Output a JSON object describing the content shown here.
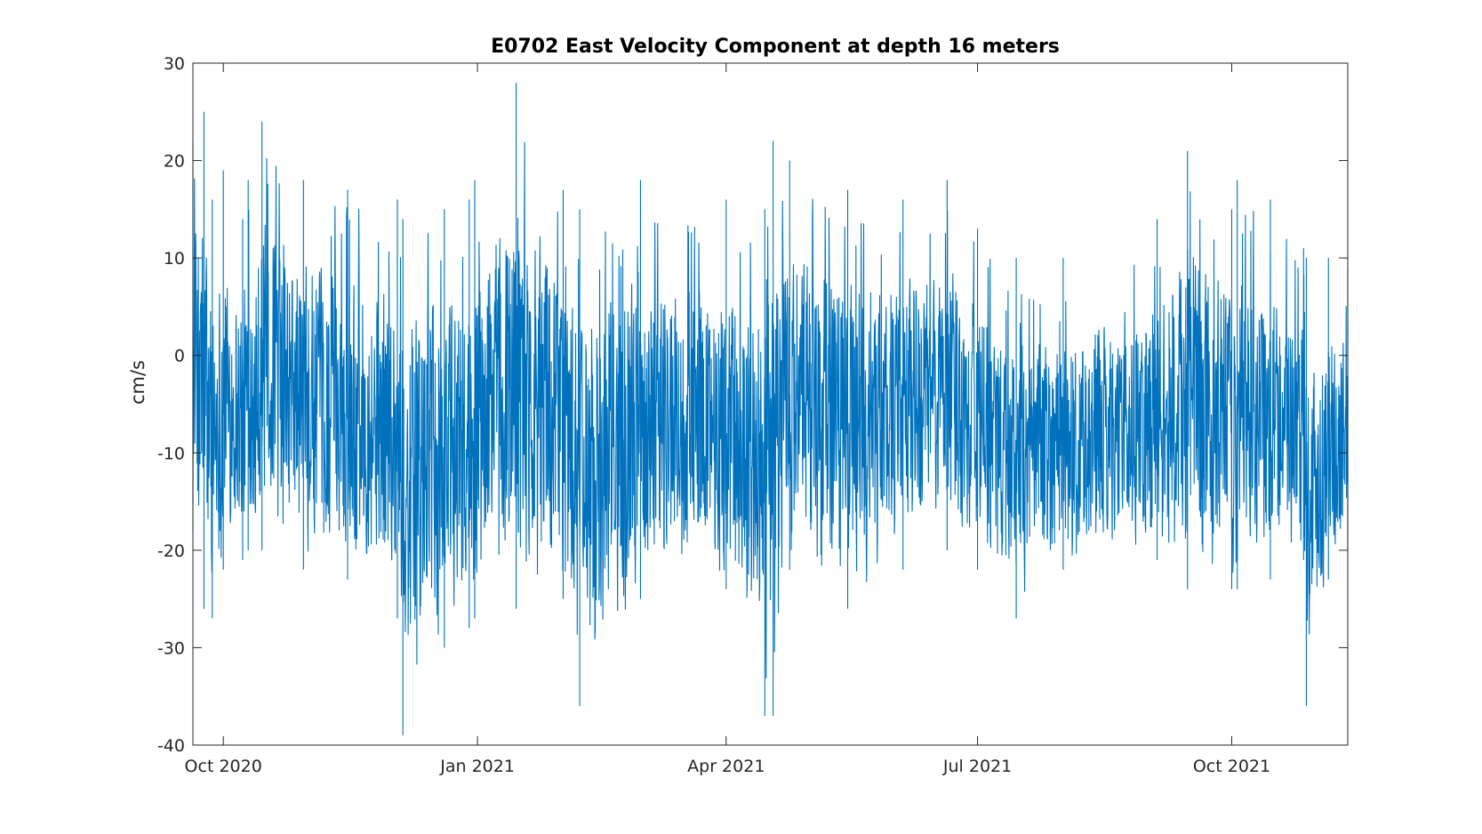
{
  "chart_data": {
    "type": "line",
    "title": "E0702 East Velocity Component at depth 16 meters",
    "xlabel": "",
    "ylabel": "cm/s",
    "xlim": [
      "2020-09-20",
      "2021-11-12"
    ],
    "ylim": [
      -40,
      30
    ],
    "yticks": [
      30,
      20,
      10,
      0,
      -10,
      -20,
      -30,
      -40
    ],
    "xticks": [
      {
        "date": "2020-10-01",
        "label": "Oct 2020"
      },
      {
        "date": "2021-01-01",
        "label": "Jan 2021"
      },
      {
        "date": "2021-04-01",
        "label": "Apr 2021"
      },
      {
        "date": "2021-07-01",
        "label": "Jul 2021"
      },
      {
        "date": "2021-10-01",
        "label": "Oct 2021"
      }
    ],
    "grid": false,
    "line_color": "#0072bd",
    "series": [
      {
        "x": [
          "2020-09-20",
          "2020-09-24",
          "2020-09-27",
          "2020-10-01",
          "2020-10-08",
          "2020-10-10",
          "2020-10-15",
          "2020-10-30",
          "2020-11-15",
          "2020-12-03",
          "2020-12-05",
          "2020-12-20",
          "2020-12-29",
          "2020-12-31",
          "2021-01-15",
          "2021-02-01",
          "2021-02-07",
          "2021-03-01",
          "2021-04-01",
          "2021-04-15",
          "2021-04-18",
          "2021-04-24",
          "2021-05-15",
          "2021-06-04",
          "2021-06-20",
          "2021-07-01",
          "2021-07-15",
          "2021-08-01",
          "2021-09-04",
          "2021-09-15",
          "2021-10-01",
          "2021-10-03",
          "2021-10-15",
          "2021-10-27",
          "2021-10-28",
          "2021-11-05",
          "2021-11-12"
        ],
        "y_min": [
          -18,
          -26,
          -27,
          -22,
          -21,
          -20,
          -20,
          -22,
          -23,
          -27,
          -39,
          -30,
          -28,
          -27,
          -26,
          -25,
          -36,
          -25,
          -24,
          -37,
          -37,
          -22,
          -26,
          -22,
          -20,
          -22,
          -27,
          -22,
          -21,
          -24,
          -24,
          -24,
          -23,
          -21,
          -36,
          -23,
          -20
        ],
        "y_max": [
          22,
          25,
          16,
          19,
          14,
          18,
          24,
          18,
          17,
          16,
          14,
          15,
          16,
          18,
          28,
          17,
          15,
          18,
          16,
          15,
          22,
          20,
          17,
          16,
          18,
          13,
          10,
          10,
          14,
          21,
          15,
          18,
          16,
          11,
          10,
          10,
          9
        ]
      }
    ]
  }
}
